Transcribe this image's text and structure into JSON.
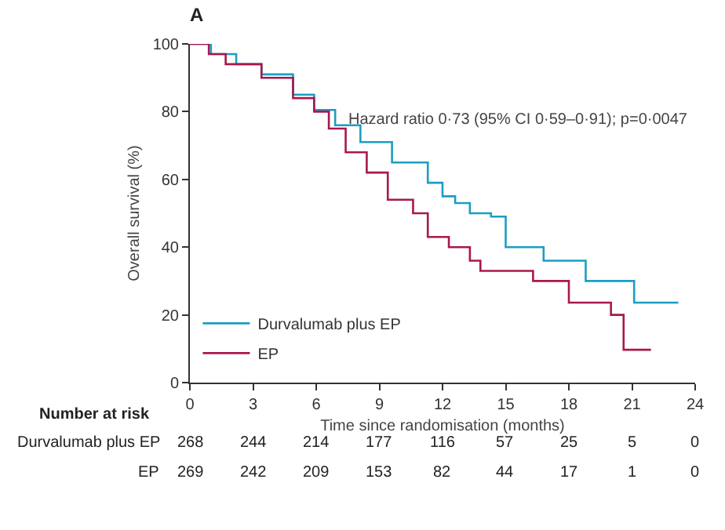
{
  "chart_data": {
    "type": "step",
    "title": "A",
    "xlabel": "Time since randomisation (months)",
    "ylabel": "Overall survival (%)",
    "xlim": [
      0,
      24
    ],
    "xticks": [
      0,
      3,
      6,
      9,
      12,
      15,
      18,
      21,
      24
    ],
    "ylim": [
      0,
      100
    ],
    "yticks": [
      0,
      20,
      40,
      60,
      80,
      100
    ],
    "grid": false,
    "legend": "bottom left",
    "series": [
      {
        "name": "Durvalumab plus EP",
        "color": "#1b9ec2",
        "x": [
          0,
          1,
          2.2,
          3.4,
          4.9,
          5.9,
          6.9,
          8.1,
          9.6,
          11.3,
          12,
          12.6,
          13.3,
          14.3,
          15,
          16.8,
          18.8,
          21.1,
          23.2
        ],
        "values": [
          100,
          97,
          94,
          91,
          85,
          80.5,
          76,
          71,
          65,
          59,
          55,
          53,
          50,
          49,
          40,
          36,
          30,
          23.6,
          23.6
        ]
      },
      {
        "name": "EP",
        "color": "#a8184f",
        "x": [
          0,
          0.9,
          1.7,
          3.4,
          4.9,
          5.9,
          6.6,
          7.4,
          8.4,
          9.4,
          10.6,
          11.3,
          12.3,
          13.3,
          13.8,
          16.3,
          18,
          20,
          20.6,
          21.9
        ],
        "values": [
          100,
          97,
          94,
          90,
          84,
          80,
          75,
          68,
          62,
          54,
          50,
          43,
          40,
          36,
          33,
          30,
          23.6,
          20,
          9.7,
          9.7
        ]
      }
    ],
    "annotations": [
      "Hazard ratio 0·73 (95% CI 0·59–0·91); p=0·0047",
      "Number at risk",
      "Durvalumab plus EP",
      "268 244 214 177 116 57 25 5 0",
      "EP",
      "269 242 209 153 82 44 17 1 0"
    ]
  }
}
